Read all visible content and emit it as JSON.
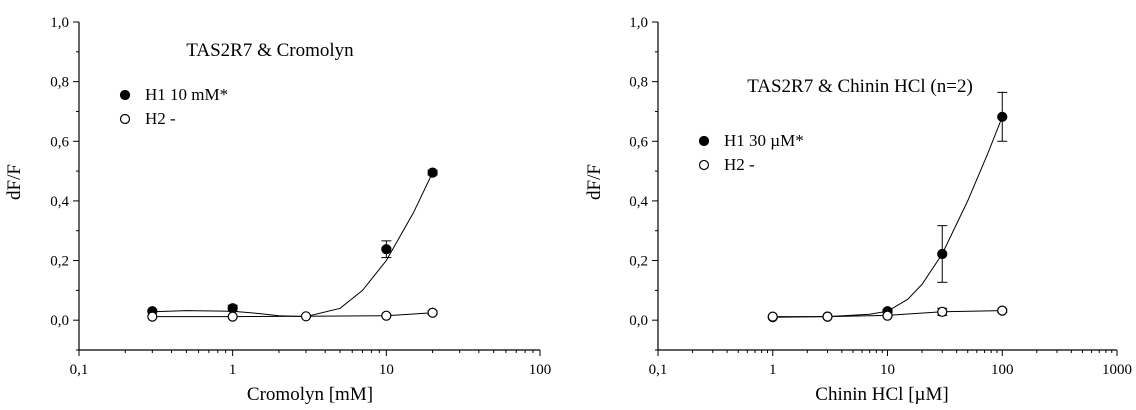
{
  "chart_data": [
    {
      "type": "scatter",
      "title": "TAS2R7 & Cromolyn",
      "xlabel": "Cromolyn [mM]",
      "ylabel": "dF/F",
      "xscale": "log",
      "xlim": [
        0.1,
        100
      ],
      "ylim": [
        -0.1,
        1.0
      ],
      "x_ticks": [
        "0,1",
        "1",
        "10",
        "100"
      ],
      "y_ticks": [
        "0,0",
        "0,2",
        "0,4",
        "0,6",
        "0,8",
        "1,0"
      ],
      "grid": false,
      "legend": "upper-left",
      "series": [
        {
          "name": "H1 10 mM*",
          "marker": "filled-circle",
          "x": [
            0.3,
            1,
            10,
            20
          ],
          "y": [
            0.03,
            0.04,
            0.238,
            0.495
          ],
          "error": [
            0.0,
            0.01,
            0.028,
            0.008
          ],
          "curve": [
            [
              0.3,
              0.028
            ],
            [
              0.5,
              0.032
            ],
            [
              1,
              0.03
            ],
            [
              1.5,
              0.022
            ],
            [
              2,
              0.015
            ],
            [
              3,
              0.012
            ],
            [
              5,
              0.04
            ],
            [
              7,
              0.1
            ],
            [
              10,
              0.2
            ],
            [
              15,
              0.36
            ],
            [
              20,
              0.495
            ]
          ]
        },
        {
          "name": "H2 -",
          "marker": "open-circle",
          "x": [
            0.3,
            1,
            3,
            10,
            20
          ],
          "y": [
            0.012,
            0.012,
            0.013,
            0.015,
            0.025
          ],
          "error": [
            0,
            0,
            0,
            0,
            0.006
          ],
          "curve": [
            [
              0.3,
              0.012
            ],
            [
              1,
              0.012
            ],
            [
              3,
              0.013
            ],
            [
              10,
              0.015
            ],
            [
              20,
              0.025
            ]
          ]
        }
      ]
    },
    {
      "type": "scatter",
      "title": "TAS2R7 & Chinin HCl (n=2)",
      "xlabel": "Chinin HCl [µM]",
      "ylabel": "dF/F",
      "xscale": "log",
      "xlim": [
        0.1,
        1000
      ],
      "ylim": [
        -0.1,
        1.0
      ],
      "x_ticks": [
        "0,1",
        "1",
        "10",
        "100",
        "1000"
      ],
      "y_ticks": [
        "0,0",
        "0,2",
        "0,4",
        "0,6",
        "0,8",
        "1,0"
      ],
      "grid": false,
      "legend": "upper-left",
      "series": [
        {
          "name": "H1 30 µM*",
          "marker": "filled-circle",
          "x": [
            1,
            3,
            10,
            30,
            100
          ],
          "y": [
            0.01,
            0.012,
            0.03,
            0.222,
            0.682
          ],
          "error": [
            0,
            0,
            0.005,
            0.095,
            0.082
          ],
          "curve": [
            [
              1,
              0.01
            ],
            [
              3,
              0.012
            ],
            [
              7,
              0.02
            ],
            [
              10,
              0.03
            ],
            [
              15,
              0.07
            ],
            [
              20,
              0.12
            ],
            [
              30,
              0.222
            ],
            [
              50,
              0.4
            ],
            [
              75,
              0.56
            ],
            [
              100,
              0.682
            ]
          ]
        },
        {
          "name": "H2 -",
          "marker": "open-circle",
          "x": [
            1,
            3,
            10,
            30,
            100
          ],
          "y": [
            0.012,
            0.012,
            0.015,
            0.028,
            0.032
          ],
          "error": [
            0,
            0,
            0.004,
            0.012,
            0.006
          ],
          "curve": [
            [
              1,
              0.012
            ],
            [
              3,
              0.012
            ],
            [
              10,
              0.016
            ],
            [
              30,
              0.028
            ],
            [
              100,
              0.032
            ]
          ]
        }
      ]
    }
  ]
}
